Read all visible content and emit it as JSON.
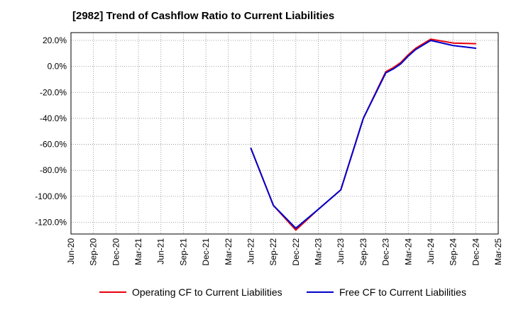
{
  "chart_data": {
    "type": "line",
    "title": "[2982]  Trend of Cashflow Ratio to Current Liabilities",
    "xlabel": "",
    "ylabel": "",
    "x_tick_labels": [
      "Jun-20",
      "Sep-20",
      "Dec-20",
      "Mar-21",
      "Jun-21",
      "Sep-21",
      "Dec-21",
      "Mar-22",
      "Jun-22",
      "Sep-22",
      "Dec-22",
      "Mar-23",
      "Jun-23",
      "Sep-23",
      "Dec-23",
      "Mar-24",
      "Jun-24",
      "Sep-24",
      "Dec-24",
      "Mar-25"
    ],
    "y_ticks": [
      20,
      0,
      -20,
      -40,
      -60,
      -80,
      -100,
      -120
    ],
    "y_tick_labels": [
      "20.0%",
      "0.0%",
      "-20.0%",
      "-40.0%",
      "-60.0%",
      "-80.0%",
      "-100.0%",
      "-120.0%"
    ],
    "ylim": [
      -129,
      26
    ],
    "grid": true,
    "legend_position": "bottom",
    "series": [
      {
        "name": "Operating CF to Current Liabilities",
        "color": "#e8000b",
        "x": [
          "Jun-22",
          "Sep-22",
          "Dec-22",
          "Mar-23",
          "Jun-23",
          "Sep-23",
          "Dec-23",
          "Jan-24",
          "Feb-24",
          "Mar-24",
          "Apr-24",
          "Jun-24",
          "Sep-24",
          "Dec-24"
        ],
        "values": [
          -63,
          -107,
          -126,
          -110,
          -95,
          -40,
          -4,
          -1,
          3,
          9,
          14,
          21,
          18,
          17.5
        ]
      },
      {
        "name": "Free CF to Current Liabilities",
        "color": "#0000cc",
        "x": [
          "Jun-22",
          "Sep-22",
          "Dec-22",
          "Mar-23",
          "Jun-23",
          "Sep-23",
          "Dec-23",
          "Jan-24",
          "Feb-24",
          "Mar-24",
          "Apr-24",
          "Jun-24",
          "Sep-24",
          "Dec-24"
        ],
        "values": [
          -63,
          -107,
          -124.5,
          -110,
          -95,
          -40,
          -5,
          -2,
          2,
          8,
          13,
          20,
          16,
          14
        ]
      }
    ]
  }
}
